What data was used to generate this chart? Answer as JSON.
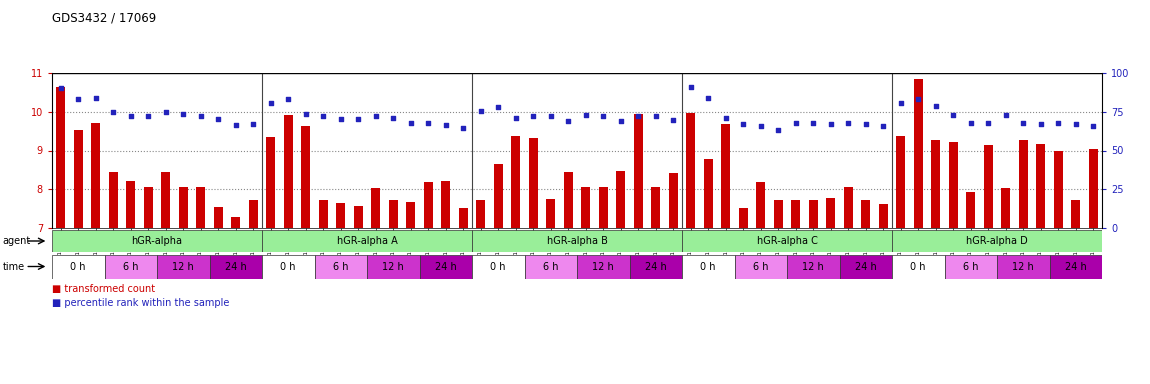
{
  "title": "GDS3432 / 17069",
  "sample_ids": [
    "GSM154259",
    "GSM154260",
    "GSM154261",
    "GSM154274",
    "GSM154275",
    "GSM154276",
    "GSM154289",
    "GSM154290",
    "GSM154291",
    "GSM154304",
    "GSM154305",
    "GSM154306",
    "GSM154262",
    "GSM154263",
    "GSM154264",
    "GSM154277",
    "GSM154278",
    "GSM154279",
    "GSM154292",
    "GSM154293",
    "GSM154294",
    "GSM154307",
    "GSM154308",
    "GSM154309",
    "GSM154265",
    "GSM154266",
    "GSM154267",
    "GSM154280",
    "GSM154281",
    "GSM154282",
    "GSM154295",
    "GSM154296",
    "GSM154297",
    "GSM154310",
    "GSM154311",
    "GSM154312",
    "GSM154268",
    "GSM154269",
    "GSM154270",
    "GSM154283",
    "GSM154284",
    "GSM154285",
    "GSM154298",
    "GSM154299",
    "GSM154300",
    "GSM154313",
    "GSM154314",
    "GSM154315",
    "GSM154271",
    "GSM154272",
    "GSM154273",
    "GSM154286",
    "GSM154287",
    "GSM154288",
    "GSM154301",
    "GSM154302",
    "GSM154303",
    "GSM154316",
    "GSM154317",
    "GSM154318"
  ],
  "bar_values": [
    10.65,
    9.52,
    9.72,
    8.45,
    8.22,
    8.05,
    8.45,
    8.05,
    8.05,
    7.55,
    7.28,
    7.72,
    9.35,
    9.92,
    9.62,
    7.72,
    7.65,
    7.58,
    8.02,
    7.72,
    7.68,
    8.18,
    8.22,
    7.52,
    7.72,
    8.65,
    9.38,
    9.32,
    7.75,
    8.45,
    8.05,
    8.05,
    8.48,
    9.95,
    8.05,
    8.42,
    9.98,
    8.78,
    9.68,
    7.52,
    8.18,
    7.72,
    7.72,
    7.72,
    7.78,
    8.05,
    7.72,
    7.62,
    9.38,
    10.85,
    9.28,
    9.22,
    7.92,
    9.15,
    8.02,
    9.28,
    9.18,
    8.98,
    7.72,
    9.05
  ],
  "dot_values": [
    10.62,
    10.32,
    10.35,
    10.0,
    9.88,
    9.88,
    10.0,
    9.95,
    9.88,
    9.82,
    9.65,
    9.68,
    10.22,
    10.32,
    9.95,
    9.88,
    9.82,
    9.82,
    9.88,
    9.85,
    9.72,
    9.72,
    9.65,
    9.58,
    10.02,
    10.12,
    9.85,
    9.88,
    9.88,
    9.75,
    9.92,
    9.88,
    9.75,
    9.88,
    9.88,
    9.78,
    10.65,
    10.35,
    9.85,
    9.68,
    9.62,
    9.52,
    9.72,
    9.72,
    9.68,
    9.72,
    9.68,
    9.62,
    10.22,
    10.32,
    10.15,
    9.92,
    9.72,
    9.72,
    9.92,
    9.72,
    9.68,
    9.72,
    9.68,
    9.62
  ],
  "groups": [
    {
      "label": "hGR-alpha",
      "start": 0,
      "end": 12
    },
    {
      "label": "hGR-alpha A",
      "start": 12,
      "end": 24
    },
    {
      "label": "hGR-alpha B",
      "start": 24,
      "end": 36
    },
    {
      "label": "hGR-alpha C",
      "start": 36,
      "end": 48
    },
    {
      "label": "hGR-alpha D",
      "start": 48,
      "end": 60
    }
  ],
  "time_labels": [
    "0 h",
    "6 h",
    "12 h",
    "24 h"
  ],
  "time_colors": [
    "#ffffff",
    "#ee88ee",
    "#cc33cc",
    "#aa00aa"
  ],
  "agent_color": "#99ee99",
  "ylim_left": [
    7,
    11
  ],
  "ylim_right": [
    0,
    100
  ],
  "yticks_left": [
    7,
    8,
    9,
    10,
    11
  ],
  "yticks_right": [
    0,
    25,
    50,
    75,
    100
  ],
  "bar_color": "#cc0000",
  "dot_color": "#2222bb",
  "grid_color": "#888888",
  "bg_color": "#ffffff",
  "left_tick_color": "#cc0000",
  "right_tick_color": "#2222bb"
}
